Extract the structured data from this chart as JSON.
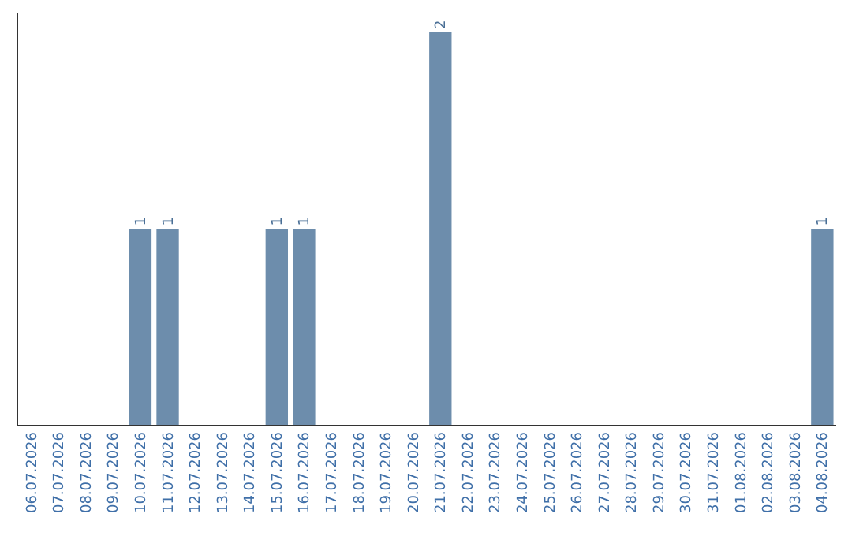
{
  "chart_data": {
    "type": "bar",
    "categories": [
      "06.07.2026",
      "07.07.2026",
      "08.07.2026",
      "09.07.2026",
      "10.07.2026",
      "11.07.2026",
      "12.07.2026",
      "13.07.2026",
      "14.07.2026",
      "15.07.2026",
      "16.07.2026",
      "17.07.2026",
      "18.07.2026",
      "19.07.2026",
      "20.07.2026",
      "21.07.2026",
      "22.07.2026",
      "23.07.2026",
      "24.07.2026",
      "25.07.2026",
      "26.07.2026",
      "27.07.2026",
      "28.07.2026",
      "29.07.2026",
      "30.07.2026",
      "31.07.2026",
      "01.08.2026",
      "02.08.2026",
      "03.08.2026",
      "04.08.2026"
    ],
    "values": [
      0,
      0,
      0,
      0,
      1,
      1,
      0,
      0,
      0,
      1,
      1,
      0,
      0,
      0,
      0,
      2,
      0,
      0,
      0,
      0,
      0,
      0,
      0,
      0,
      0,
      0,
      0,
      0,
      0,
      1
    ],
    "value_labels": [
      null,
      null,
      null,
      null,
      "1",
      "1",
      null,
      null,
      null,
      "1",
      "1",
      null,
      null,
      null,
      null,
      "2",
      null,
      null,
      null,
      null,
      null,
      null,
      null,
      null,
      null,
      null,
      null,
      null,
      null,
      "1"
    ],
    "color": "#6d8dac",
    "ylim": [
      0,
      2.1
    ],
    "tick_labels": "x"
  }
}
